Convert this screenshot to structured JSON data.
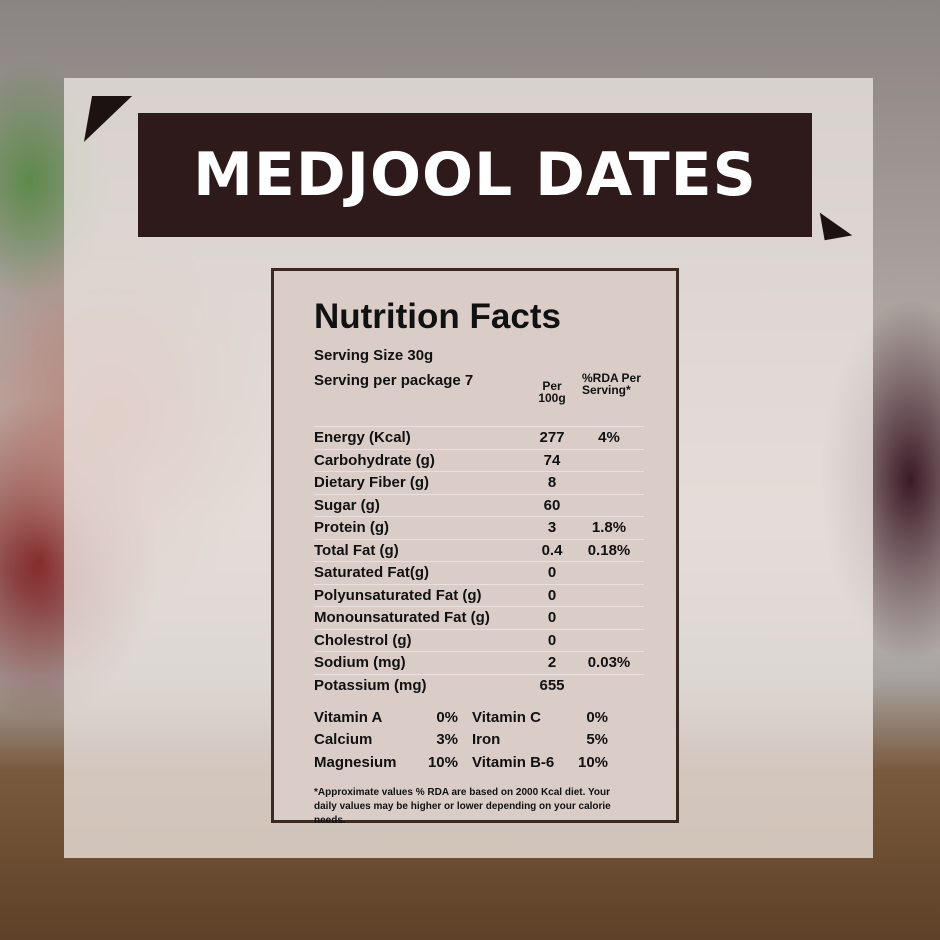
{
  "title": "MEDJOOL DATES",
  "label": {
    "heading": "Nutrition Facts",
    "serving_size": "Serving Size 30g",
    "servings": "Serving per package 7",
    "col_per": "Per 100g",
    "col_rda": "%RDA Per Serving*",
    "rows": [
      {
        "name": "Energy (Kcal)",
        "per": "277",
        "rda": "4%"
      },
      {
        "name": "Carbohydrate (g)",
        "per": "74",
        "rda": ""
      },
      {
        "name": "Dietary Fiber (g)",
        "per": "8",
        "rda": ""
      },
      {
        "name": "Sugar (g)",
        "per": "60",
        "rda": ""
      },
      {
        "name": "Protein (g)",
        "per": "3",
        "rda": "1.8%"
      },
      {
        "name": "Total Fat (g)",
        "per": "0.4",
        "rda": "0.18%"
      },
      {
        "name": "Saturated Fat(g)",
        "per": "0",
        "rda": ""
      },
      {
        "name": "Polyunsaturated Fat (g)",
        "per": "0",
        "rda": ""
      },
      {
        "name": "Monounsaturated Fat (g)",
        "per": "0",
        "rda": ""
      },
      {
        "name": "Cholestrol (g)",
        "per": "0",
        "rda": ""
      },
      {
        "name": "Sodium (mg)",
        "per": "2",
        "rda": "0.03%"
      },
      {
        "name": "Potassium (mg)",
        "per": "655",
        "rda": ""
      }
    ],
    "vitamins": [
      {
        "a": "Vitamin A",
        "av": "0%",
        "b": "Vitamin C",
        "bv": "0%"
      },
      {
        "a": "Calcium",
        "av": "3%",
        "b": "Iron",
        "bv": "5%"
      },
      {
        "a": "Magnesium",
        "av": "10%",
        "b": "Vitamin B-6",
        "bv": "10%"
      }
    ],
    "note": "*Approximate values % RDA are based on 2000 Kcal diet. Your daily values may be higher or lower depending on your calorie needs."
  }
}
